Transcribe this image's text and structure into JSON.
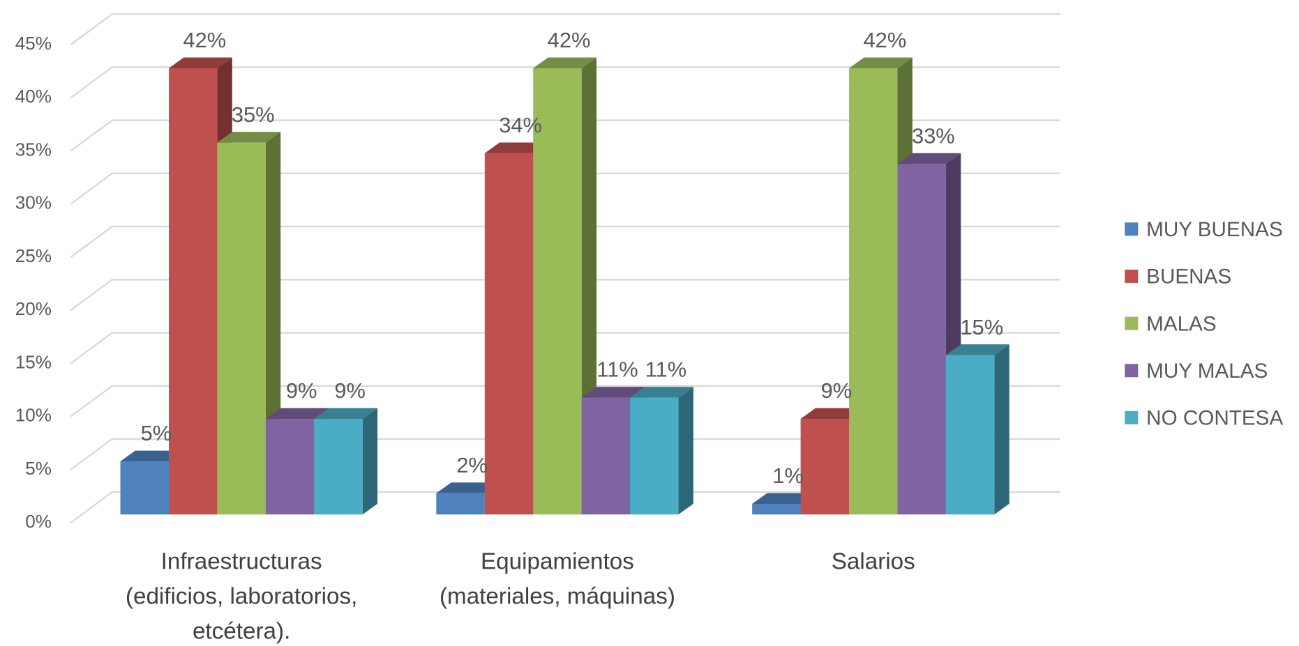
{
  "chart_data": {
    "type": "bar3d",
    "categories": [
      "Infraestructuras\n(edificios, laboratorios,\netcétera).",
      "Equipamientos\n(materiales, máquinas)",
      "Salarios"
    ],
    "series": [
      {
        "name": "MUY BUENAS",
        "color": "#4f81bd",
        "values": [
          5,
          2,
          1
        ],
        "value_labels": [
          "5%",
          "2%",
          "1%"
        ]
      },
      {
        "name": "BUENAS",
        "color": "#c0504d",
        "values": [
          42,
          34,
          9
        ],
        "value_labels": [
          "42%",
          "34%",
          "9%"
        ]
      },
      {
        "name": "MALAS",
        "color": "#9bbb59",
        "values": [
          35,
          42,
          42
        ],
        "value_labels": [
          "35%",
          "42%",
          "42%"
        ]
      },
      {
        "name": "MUY MALAS",
        "color": "#8064a2",
        "values": [
          9,
          11,
          33
        ],
        "value_labels": [
          "9%",
          "11%",
          "33%"
        ]
      },
      {
        "name": "NO CONTESA",
        "color": "#4bacc6",
        "values": [
          9,
          11,
          15
        ],
        "value_labels": [
          "9%",
          "11%",
          "15%"
        ]
      }
    ],
    "ylim": [
      0,
      45
    ],
    "yticks": [
      {
        "value": 0,
        "label": "0%"
      },
      {
        "value": 5,
        "label": "5%"
      },
      {
        "value": 10,
        "label": "10%"
      },
      {
        "value": 15,
        "label": "15%"
      },
      {
        "value": 20,
        "label": "20%"
      },
      {
        "value": 25,
        "label": "25%"
      },
      {
        "value": 30,
        "label": "30%"
      },
      {
        "value": 35,
        "label": "35%"
      },
      {
        "value": 40,
        "label": "40%"
      },
      {
        "value": 45,
        "label": "45%"
      }
    ],
    "grid": true,
    "legend": "right"
  }
}
